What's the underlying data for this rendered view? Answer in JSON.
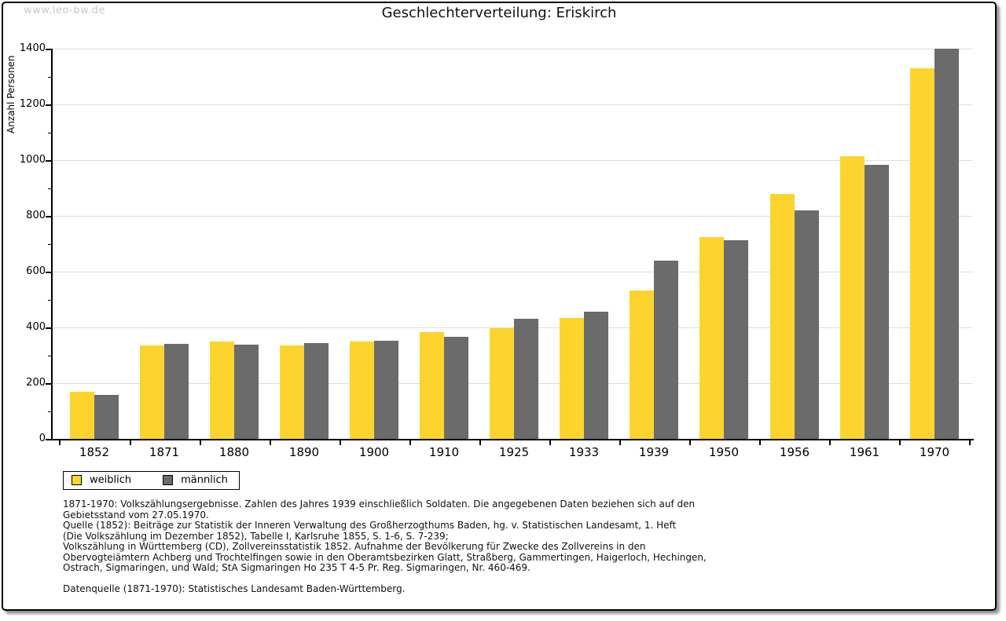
{
  "watermark": "www.leo-bw.de",
  "chart_data": {
    "type": "bar",
    "title": "Geschlechterverteilung: Eriskirch",
    "xlabel": "",
    "ylabel": "Anzahl Personen",
    "ylim": [
      0,
      1400
    ],
    "ytick_major_step": 200,
    "ytick_minor_step": 100,
    "grid": true,
    "legend_position": "bottom-left",
    "categories": [
      "1852",
      "1871",
      "1880",
      "1890",
      "1900",
      "1910",
      "1925",
      "1933",
      "1939",
      "1950",
      "1956",
      "1961",
      "1970"
    ],
    "series": [
      {
        "name": "weiblich",
        "color": "#FDD32E",
        "values": [
          170,
          336,
          349,
          335,
          348,
          383,
          398,
          433,
          533,
          724,
          878,
          1015,
          1330
        ]
      },
      {
        "name": "männlich",
        "color": "#6B6B6B",
        "values": [
          158,
          341,
          338,
          343,
          352,
          367,
          430,
          455,
          640,
          712,
          820,
          982,
          1400
        ]
      }
    ]
  },
  "colors": {
    "bar_weiblich": "#FDD32E",
    "bar_maennlich": "#6B6B6B",
    "gridline": "#dddddd",
    "watermark": "#c9c9c9",
    "frame_border": "#000000"
  },
  "footer": {
    "lines": [
      "1871-1970: Volkszählungsergebnisse. Zahlen des Jahres 1939 einschließlich Soldaten. Die angegebenen Daten beziehen sich auf den",
      "Gebietsstand vom 27.05.1970.",
      "Quelle (1852): Beiträge zur Statistik der Inneren Verwaltung des Großherzogthums Baden, hg. v. Statistischen Landesamt, 1. Heft",
      "(Die Volkszählung im Dezember 1852), Tabelle I, Karlsruhe 1855, S. 1-6, S. 7-239;",
      "Volkszählung in Württemberg (CD), Zollvereinsstatistik 1852. Aufnahme der Bevölkerung für Zwecke des Zollvereins in den",
      "Obervogteiämtern Achberg und Trochtelfingen sowie in den Oberamtsbezirken Glatt, Straßberg, Gammertingen, Haigerloch, Hechingen,",
      "Ostrach, Sigmaringen, und Wald; StA Sigmaringen Ho 235 T 4-5 Pr. Reg. Sigmaringen, Nr. 460-469."
    ],
    "datasource": "Datenquelle (1871-1970): Statistisches Landesamt Baden-Württemberg."
  }
}
